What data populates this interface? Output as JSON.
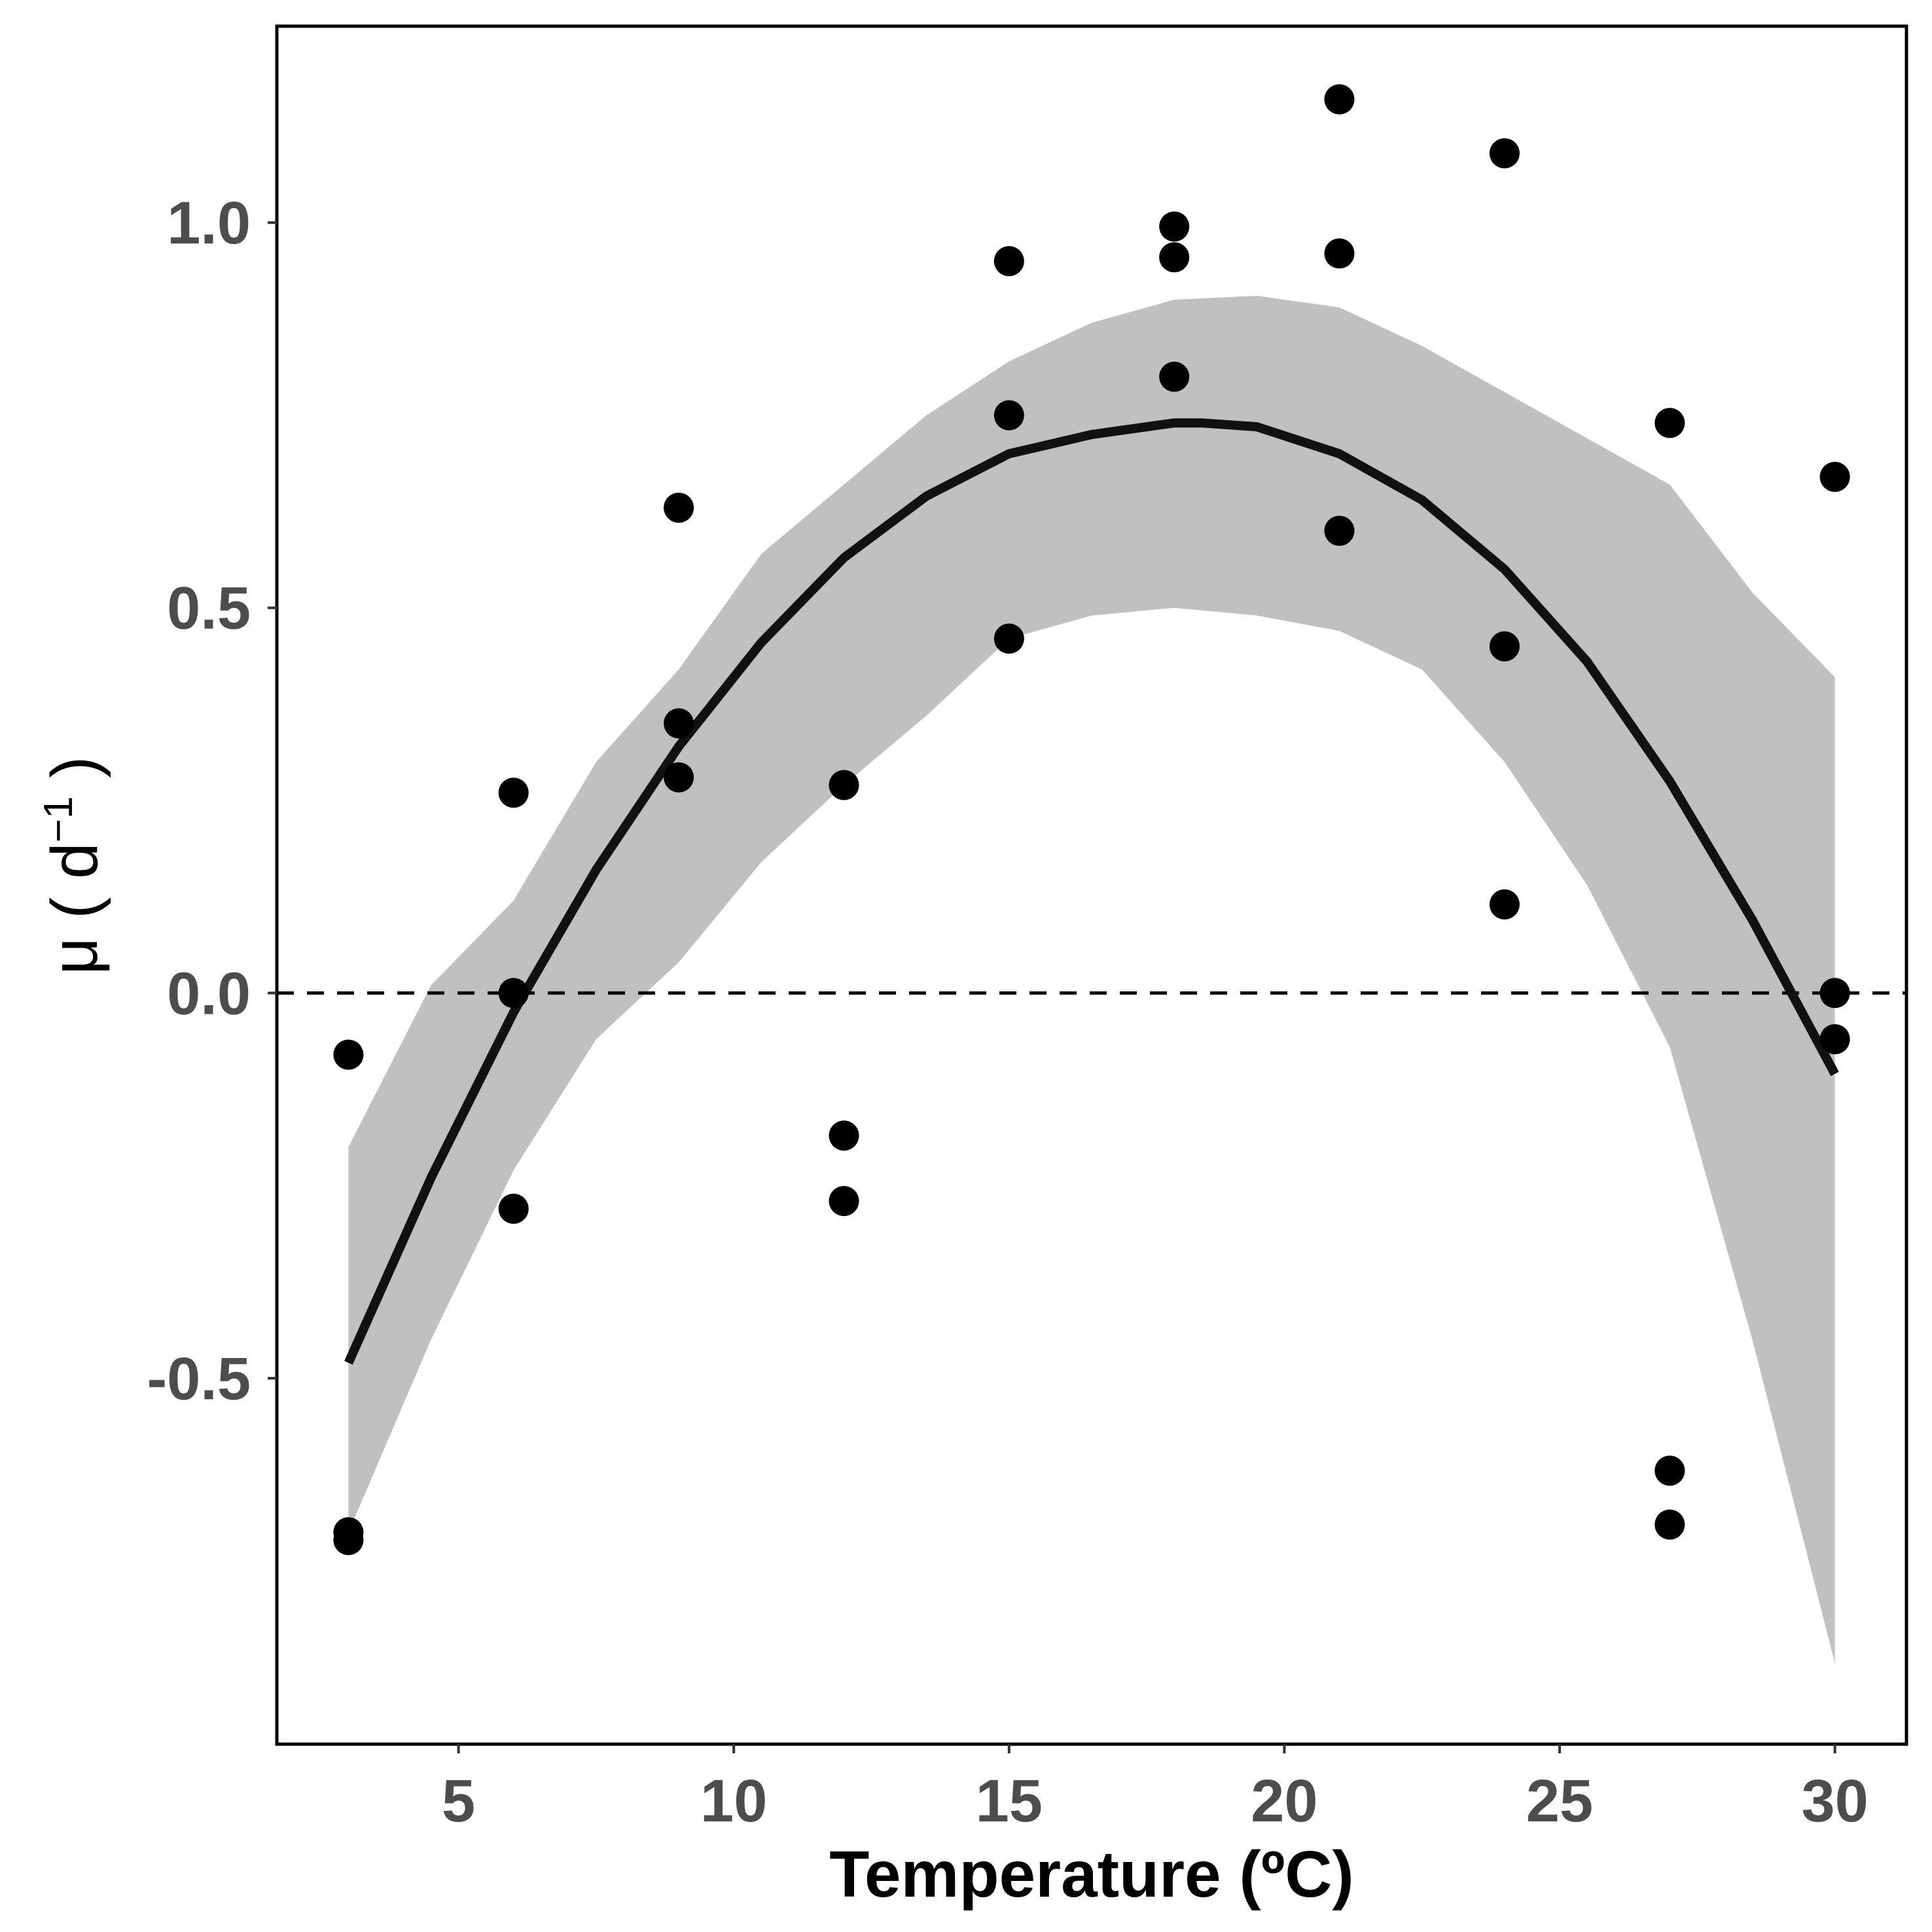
{
  "chart_data": {
    "type": "scatter",
    "xlabel": "Temperature (ºC)",
    "ylabel": {
      "main": "μ ( d",
      "sup": "−1",
      "tail": " )"
    },
    "xlim": [
      1.7,
      31.3
    ],
    "ylim": [
      -0.975,
      1.255
    ],
    "x_ticks": [
      {
        "value": 5,
        "label": "5"
      },
      {
        "value": 10,
        "label": "10"
      },
      {
        "value": 15,
        "label": "15"
      },
      {
        "value": 20,
        "label": "20"
      },
      {
        "value": 25,
        "label": "25"
      },
      {
        "value": 30,
        "label": "30"
      }
    ],
    "y_ticks": [
      {
        "value": -0.5,
        "label": "-0.5"
      },
      {
        "value": 0.0,
        "label": "0.0"
      },
      {
        "value": 0.5,
        "label": "0.5"
      },
      {
        "value": 1.0,
        "label": "1.0"
      }
    ],
    "reference_line": {
      "y": 0,
      "style": "dashed",
      "color": "#000000"
    },
    "points": [
      {
        "x": 3,
        "y": -0.08
      },
      {
        "x": 3,
        "y": -0.7
      },
      {
        "x": 3,
        "y": -0.71
      },
      {
        "x": 6,
        "y": 0.26
      },
      {
        "x": 6,
        "y": 0.0
      },
      {
        "x": 6,
        "y": -0.28
      },
      {
        "x": 9,
        "y": 0.63
      },
      {
        "x": 9,
        "y": 0.35
      },
      {
        "x": 9,
        "y": 0.28
      },
      {
        "x": 12,
        "y": 0.27
      },
      {
        "x": 12,
        "y": -0.185
      },
      {
        "x": 12,
        "y": -0.27
      },
      {
        "x": 15,
        "y": 0.95
      },
      {
        "x": 15,
        "y": 0.75
      },
      {
        "x": 15,
        "y": 0.46
      },
      {
        "x": 18,
        "y": 0.995
      },
      {
        "x": 18,
        "y": 0.955
      },
      {
        "x": 18,
        "y": 0.8
      },
      {
        "x": 21,
        "y": 1.16
      },
      {
        "x": 21,
        "y": 0.96
      },
      {
        "x": 21,
        "y": 0.6
      },
      {
        "x": 24,
        "y": 1.09
      },
      {
        "x": 24,
        "y": 0.45
      },
      {
        "x": 24,
        "y": 0.115
      },
      {
        "x": 27,
        "y": 0.74
      },
      {
        "x": 27,
        "y": -0.62
      },
      {
        "x": 27,
        "y": -0.69
      },
      {
        "x": 30,
        "y": 0.67
      },
      {
        "x": 30,
        "y": 0.0
      },
      {
        "x": 30,
        "y": -0.06
      }
    ],
    "fit_curve": {
      "x": [
        3,
        4.5,
        6,
        7.5,
        9,
        10.5,
        12,
        13.5,
        15,
        16.5,
        18,
        18.5,
        19.5,
        21,
        22.5,
        24,
        25.5,
        27,
        28.5,
        30
      ],
      "y": [
        -0.48,
        -0.24,
        -0.025,
        0.16,
        0.32,
        0.455,
        0.565,
        0.645,
        0.7,
        0.725,
        0.74,
        0.74,
        0.735,
        0.7,
        0.64,
        0.55,
        0.43,
        0.275,
        0.095,
        -0.105
      ]
    },
    "confidence_band": {
      "x": [
        3,
        4.5,
        6,
        7.5,
        9,
        10.5,
        12,
        13.5,
        15,
        16.5,
        18,
        19.5,
        21,
        22.5,
        24,
        25.5,
        27,
        28.5,
        30
      ],
      "upper": [
        -0.2,
        0.01,
        0.12,
        0.3,
        0.42,
        0.57,
        0.66,
        0.75,
        0.82,
        0.87,
        0.9,
        0.905,
        0.89,
        0.84,
        0.78,
        0.72,
        0.66,
        0.52,
        0.41
      ],
      "lower": [
        -0.7,
        -0.45,
        -0.23,
        -0.06,
        0.04,
        0.17,
        0.27,
        0.36,
        0.46,
        0.49,
        0.5,
        0.49,
        0.47,
        0.42,
        0.3,
        0.14,
        -0.07,
        -0.45,
        -0.87
      ]
    },
    "colors": {
      "points": "#000000",
      "curve": "#111111",
      "band": "#c0c0c0",
      "frame": "#000000"
    },
    "grid": false,
    "legend": "none"
  }
}
